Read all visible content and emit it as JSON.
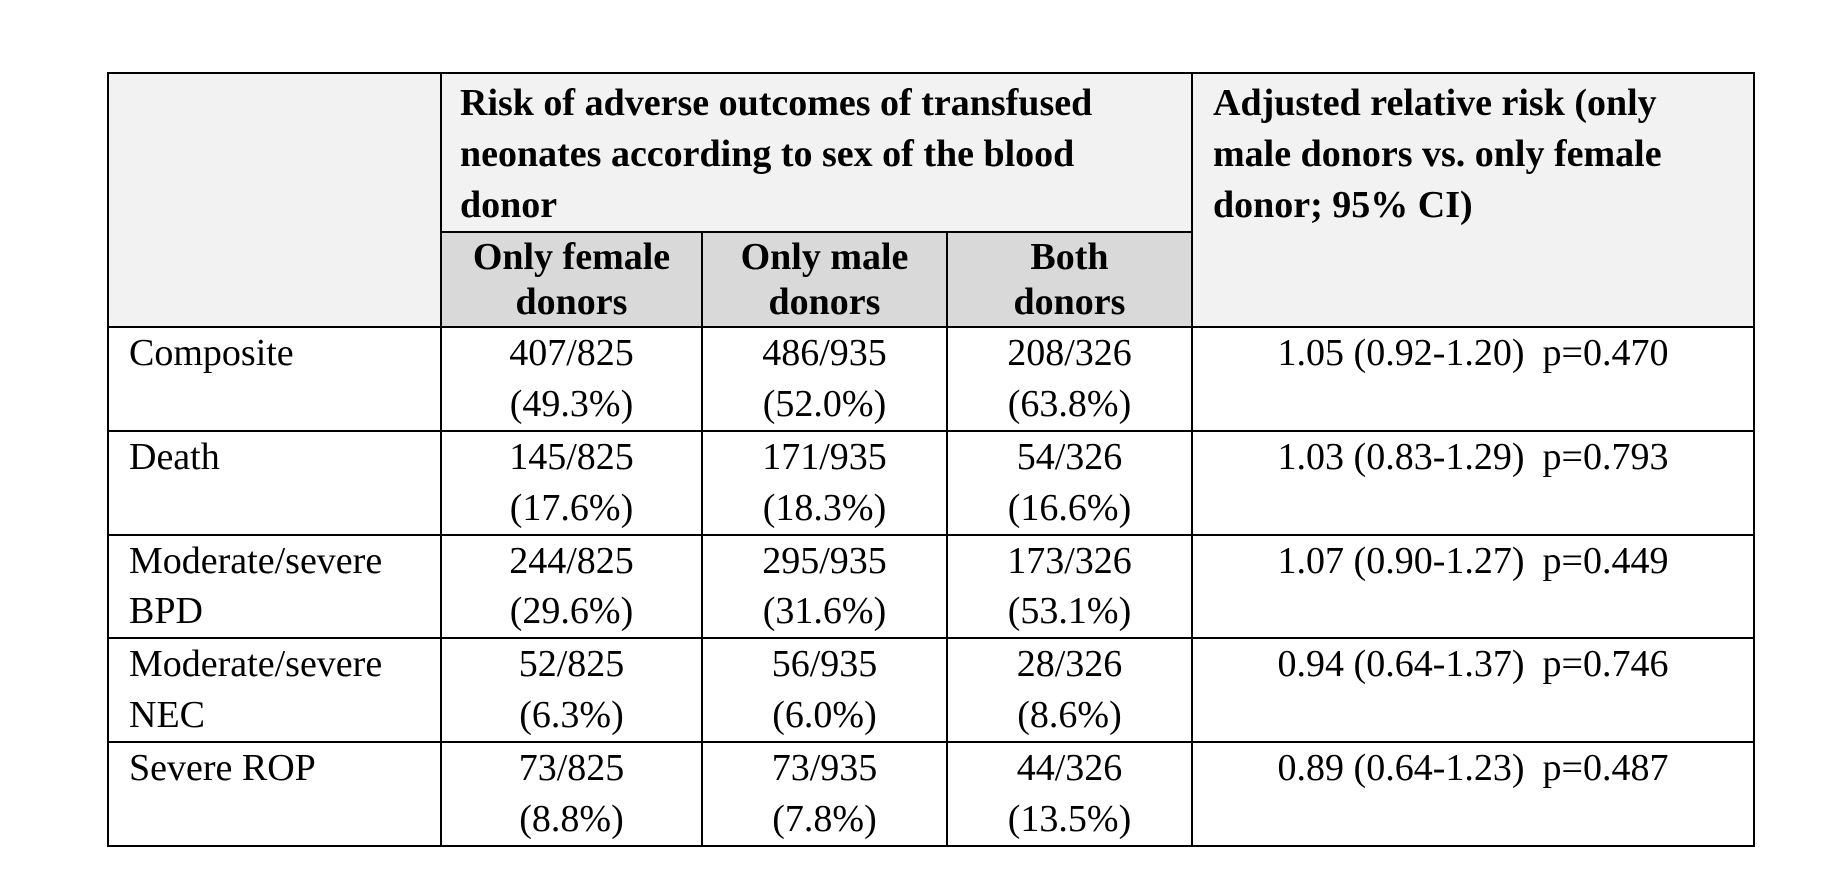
{
  "table": {
    "group_header": "Risk of adverse outcomes of transfused neonates according to sex of the blood donor",
    "rr_header": "Adjusted relative risk (only male donors vs. only female donor; 95% CI)",
    "columns": [
      {
        "line1": "Only female",
        "line2": "donors"
      },
      {
        "line1": "Only male",
        "line2": "donors"
      },
      {
        "line1": "Both",
        "line2": "donors"
      }
    ],
    "rows": [
      {
        "label1": "Composite",
        "label2": "",
        "cells": [
          {
            "count": "407/825",
            "pct": "(49.3%)"
          },
          {
            "count": "486/935",
            "pct": "(52.0%)"
          },
          {
            "count": "208/326",
            "pct": "(63.8%)"
          }
        ],
        "rr": "1.05 (0.92-1.20)",
        "p": "p=0.470"
      },
      {
        "label1": "Death",
        "label2": "",
        "cells": [
          {
            "count": "145/825",
            "pct": "(17.6%)"
          },
          {
            "count": "171/935",
            "pct": "(18.3%)"
          },
          {
            "count": "54/326",
            "pct": "(16.6%)"
          }
        ],
        "rr": "1.03 (0.83-1.29)",
        "p": "p=0.793"
      },
      {
        "label1": "Moderate/severe",
        "label2": "BPD",
        "cells": [
          {
            "count": "244/825",
            "pct": "(29.6%)"
          },
          {
            "count": "295/935",
            "pct": "(31.6%)"
          },
          {
            "count": "173/326",
            "pct": "(53.1%)"
          }
        ],
        "rr": "1.07 (0.90-1.27)",
        "p": "p=0.449"
      },
      {
        "label1": "Moderate/severe",
        "label2": "NEC",
        "cells": [
          {
            "count": "52/825",
            "pct": "(6.3%)"
          },
          {
            "count": "56/935",
            "pct": "(6.0%)"
          },
          {
            "count": "28/326",
            "pct": "(8.6%)"
          }
        ],
        "rr": "0.94 (0.64-1.37)",
        "p": "p=0.746"
      },
      {
        "label1": "Severe ROP",
        "label2": "",
        "cells": [
          {
            "count": "73/825",
            "pct": "(8.8%)"
          },
          {
            "count": "73/935",
            "pct": "(7.8%)"
          },
          {
            "count": "44/326",
            "pct": "(13.5%)"
          }
        ],
        "rr": "0.89 (0.64-1.23)",
        "p": "p=0.487"
      }
    ]
  },
  "colors": {
    "header_light": "#f2f2f2",
    "header_dark": "#d9d9d9",
    "border": "#000000"
  }
}
